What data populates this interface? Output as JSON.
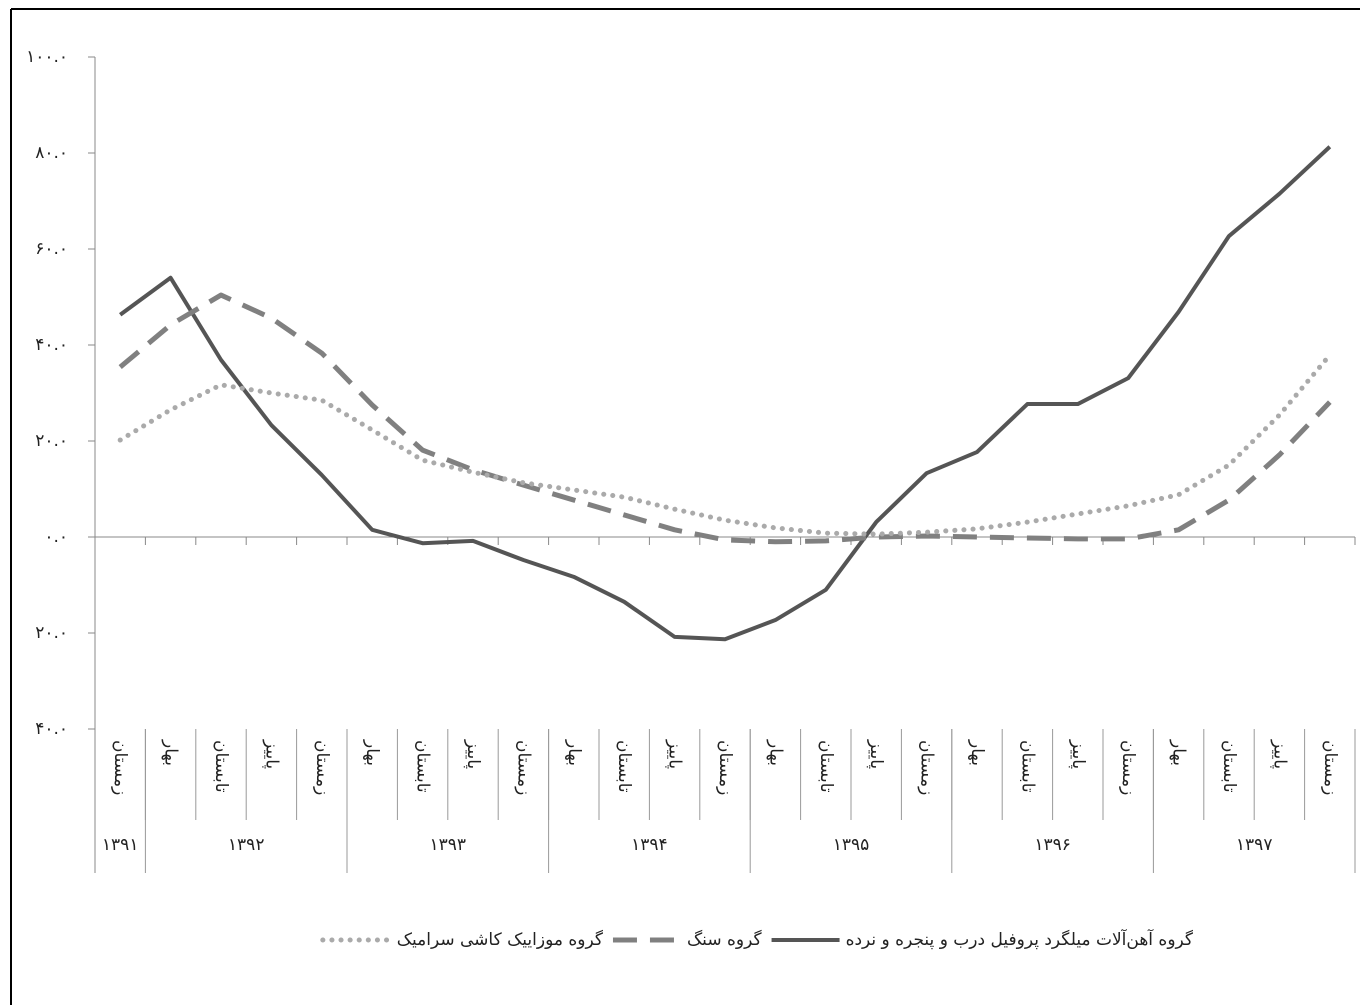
{
  "chart_data": {
    "type": "line",
    "groups": [
      {
        "label": "۱۳۹۱",
        "categories": [
          "زمستان"
        ]
      },
      {
        "label": "۱۳۹۲",
        "categories": [
          "بهار",
          "تابستان",
          "پاییز",
          "زمستان"
        ]
      },
      {
        "label": "۱۳۹۳",
        "categories": [
          "بهار",
          "تابستان",
          "پاییز",
          "زمستان"
        ]
      },
      {
        "label": "۱۳۹۴",
        "categories": [
          "بهار",
          "تابستان",
          "پاییز",
          "زمستان"
        ]
      },
      {
        "label": "۱۳۹۵",
        "categories": [
          "بهار",
          "تابستان",
          "پاییز",
          "زمستان"
        ]
      },
      {
        "label": "۱۳۹۶",
        "categories": [
          "بهار",
          "تابستان",
          "پاییز",
          "زمستان"
        ]
      },
      {
        "label": "۱۳۹۷",
        "categories": [
          "بهار",
          "تابستان",
          "پاییز",
          "زمستان"
        ]
      }
    ],
    "series": [
      {
        "name": "گروه آهن‌آلات میلگرد پروفیل درب و پنجره و نرده",
        "color": "#555555",
        "style": "solid",
        "values": [
          46.3,
          54,
          36.9,
          23.3,
          12.9,
          1.5,
          -1.3,
          -0.8,
          -4.8,
          -8.3,
          -13.5,
          -20.8,
          -21.3,
          -17.3,
          -11,
          3.1,
          13.3,
          17.7,
          27.7,
          27.7,
          33.1,
          46.9,
          62.7,
          71.5,
          81.3
        ]
      },
      {
        "name": "گروه سنگ",
        "color": "#808080",
        "style": "dashed",
        "values": [
          35.4,
          44.2,
          50.4,
          45.6,
          38.3,
          27.5,
          18.1,
          14,
          10.8,
          7.7,
          4.6,
          1.5,
          -0.6,
          -1,
          -0.8,
          0,
          0.2,
          0,
          -0.2,
          -0.4,
          -0.4,
          1.5,
          7.7,
          17.1,
          28.1
        ]
      },
      {
        "name": "گروه موزاییک کاشی سرامیک",
        "color": "#aaaaaa",
        "style": "dotted",
        "values": [
          20.2,
          26.5,
          31.7,
          30,
          28.5,
          22.3,
          16,
          13.5,
          11.3,
          9.8,
          8.3,
          5.8,
          3.5,
          1.9,
          0.8,
          0.6,
          1,
          1.7,
          3.1,
          4.8,
          6.5,
          8.8,
          15,
          25.4,
          37.9
        ]
      }
    ],
    "ylim": [
      -40,
      100
    ],
    "yticks": [
      {
        "value": 100,
        "label": "۱۰۰.۰"
      },
      {
        "value": 80,
        "label": "۸۰.۰"
      },
      {
        "value": 60,
        "label": "۶۰.۰"
      },
      {
        "value": 40,
        "label": "۴۰.۰"
      },
      {
        "value": 20,
        "label": "۲۰.۰"
      },
      {
        "value": 0,
        "label": "۰.۰"
      },
      {
        "value": -20,
        "label": "۲۰.۰"
      },
      {
        "value": -40,
        "label": "۴۰.۰"
      }
    ]
  }
}
